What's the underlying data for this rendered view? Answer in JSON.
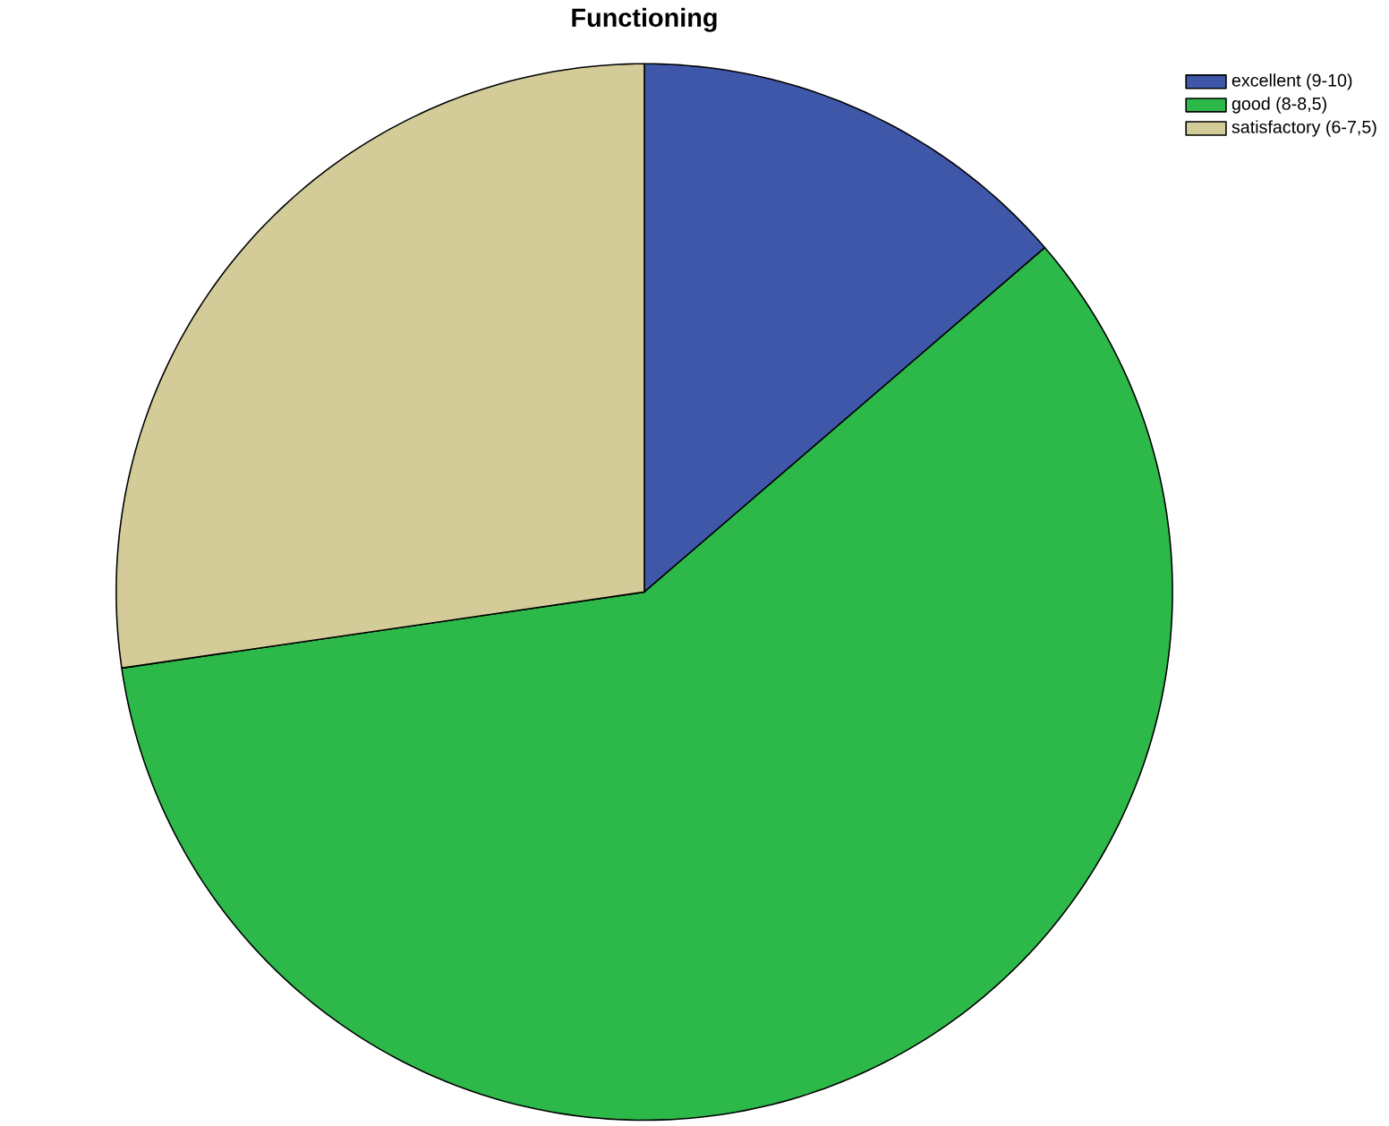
{
  "chart_data": {
    "type": "pie",
    "title": "Functioning",
    "categories": [
      "excellent (9-10)",
      "good (8-8,5)",
      "satisfactory (6-7,5)"
    ],
    "values": [
      13.7,
      59.0,
      27.3
    ],
    "colors": [
      "#3f57a8",
      "#2db84a",
      "#d3cc98"
    ],
    "legend": "top right"
  }
}
